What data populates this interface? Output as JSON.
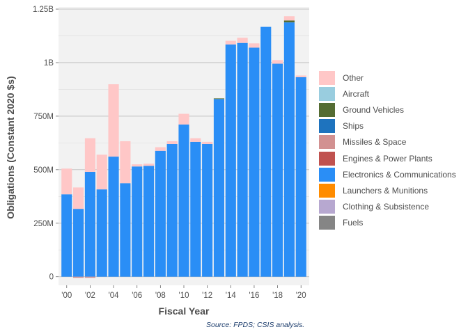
{
  "chart_data": {
    "type": "bar",
    "stacked": true,
    "xlabel": "Fiscal Year",
    "ylabel": "Obligations (Constant 2020 $s)",
    "source": "Source: FPDS; CSIS analysis.",
    "ylim": [
      -40000000,
      1260000000
    ],
    "yticks": [
      {
        "value": 0,
        "label": "0"
      },
      {
        "value": 250000000,
        "label": "250M"
      },
      {
        "value": 500000000,
        "label": "500M"
      },
      {
        "value": 750000000,
        "label": "750M"
      },
      {
        "value": 1000000000,
        "label": "1B"
      },
      {
        "value": 1250000000,
        "label": "1.25B"
      }
    ],
    "grid": true,
    "legend_position": "right",
    "categories": [
      "2000",
      "2001",
      "2002",
      "2003",
      "2004",
      "2005",
      "2006",
      "2007",
      "2008",
      "2009",
      "2010",
      "2011",
      "2012",
      "2013",
      "2014",
      "2015",
      "2016",
      "2017",
      "2018",
      "2019",
      "2020"
    ],
    "xtick_labels": {
      "2000": "'00",
      "2002": "'02",
      "2004": "'04",
      "2006": "'06",
      "2008": "'08",
      "2010": "'10",
      "2012": "'12",
      "2014": "'14",
      "2016": "'16",
      "2018": "'18",
      "2020": "'20"
    },
    "series": [
      {
        "name": "Fuels",
        "color": "#858585",
        "values": [
          0,
          0,
          0,
          0,
          0,
          0,
          0,
          0,
          0,
          0,
          0,
          0,
          0,
          0,
          0,
          0,
          0,
          0,
          0,
          0,
          0
        ]
      },
      {
        "name": "Clothing & Subsistence",
        "color": "#b7a8d0",
        "values": [
          0,
          0,
          0,
          0,
          0,
          0,
          0,
          0,
          0,
          0,
          0,
          0,
          0,
          0,
          0,
          0,
          0,
          0,
          0,
          0,
          0
        ]
      },
      {
        "name": "Launchers & Munitions",
        "color": "#ff8c00",
        "values": [
          0,
          0,
          0,
          0,
          0,
          0,
          0,
          0,
          0,
          0,
          0,
          0,
          0,
          0,
          0,
          0,
          0,
          0,
          0,
          0,
          0
        ]
      },
      {
        "name": "Electronics & Communications",
        "color": "#2a8ef6",
        "values": [
          385000000,
          317000000,
          490000000,
          408000000,
          561000000,
          437000000,
          515000000,
          518000000,
          588000000,
          620000000,
          711000000,
          630000000,
          620000000,
          830000000,
          1085000000,
          1092000000,
          1070000000,
          1167000000,
          995000000,
          1188000000,
          932000000
        ]
      },
      {
        "name": "Engines & Power Plants",
        "color": "#c0524f",
        "values": [
          0,
          0,
          0,
          0,
          0,
          0,
          0,
          0,
          0,
          0,
          0,
          0,
          0,
          0,
          0,
          0,
          0,
          0,
          0,
          0,
          0
        ]
      },
      {
        "name": "Missiles & Space",
        "color": "#d29191",
        "values": [
          0,
          0,
          0,
          0,
          0,
          0,
          0,
          0,
          0,
          0,
          0,
          0,
          0,
          0,
          0,
          0,
          0,
          0,
          0,
          0,
          0
        ]
      },
      {
        "name": "Ships",
        "color": "#1e73be",
        "values": [
          0,
          0,
          0,
          0,
          0,
          0,
          0,
          0,
          0,
          0,
          0,
          0,
          0,
          0,
          0,
          0,
          0,
          0,
          0,
          0,
          0
        ]
      },
      {
        "name": "Ground Vehicles",
        "color": "#546c33",
        "values": [
          0,
          0,
          0,
          0,
          0,
          0,
          0,
          0,
          0,
          0,
          0,
          0,
          0,
          3000000,
          0,
          0,
          0,
          0,
          0,
          9000000,
          0
        ]
      },
      {
        "name": "Aircraft",
        "color": "#99cddf",
        "values": [
          0,
          0,
          0,
          0,
          0,
          0,
          0,
          0,
          0,
          0,
          0,
          0,
          0,
          0,
          0,
          0,
          0,
          0,
          0,
          0,
          0
        ]
      },
      {
        "name": "Other",
        "color": "#ffc7c7",
        "values": [
          120000000,
          100000000,
          157000000,
          162000000,
          338000000,
          196000000,
          10000000,
          10000000,
          17000000,
          13000000,
          50000000,
          17000000,
          10000000,
          0,
          17000000,
          24000000,
          20000000,
          0,
          17000000,
          20000000,
          8000000
        ]
      }
    ],
    "negative_values": {
      "2001": -5000000,
      "2002": -5000000
    }
  },
  "legend_order": [
    "Other",
    "Aircraft",
    "Ground Vehicles",
    "Ships",
    "Missiles & Space",
    "Engines & Power Plants",
    "Electronics & Communications",
    "Launchers & Munitions",
    "Clothing & Subsistence",
    "Fuels"
  ]
}
